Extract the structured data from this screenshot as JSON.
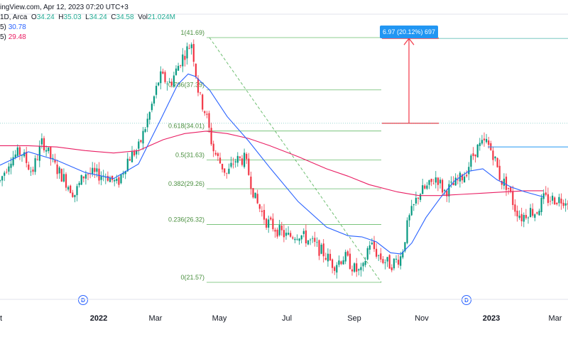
{
  "header": {
    "source_fragment": "ingView.com, Apr 12, 2023 07:20 UTC+3",
    "symbol_fragment": "1D, Arca",
    "ohlc": [
      {
        "key": "O",
        "value": "34.24"
      },
      {
        "key": "H",
        "value": "35.03"
      },
      {
        "key": "L",
        "value": "34.24"
      },
      {
        "key": "C",
        "value": "34.58"
      },
      {
        "key": "Vol",
        "value": "21.024M"
      }
    ],
    "ma_rows": [
      {
        "suffix": "5)",
        "value": "30.78",
        "color": "#2962ff"
      },
      {
        "suffix": "5)",
        "value": "29.48",
        "color": "#e91e63"
      }
    ]
  },
  "measure_badge": "6.97 (20.12%) 697",
  "dividend_marker": "D",
  "chart_data": {
    "type": "candlestick",
    "x_axis_labels": [
      {
        "label": "t",
        "t": 0
      },
      {
        "label": "2022",
        "t": 117,
        "bold": true
      },
      {
        "label": "Mar",
        "t": 197
      },
      {
        "label": "May",
        "t": 287
      },
      {
        "label": "Jul",
        "t": 382
      },
      {
        "label": "Sep",
        "t": 477
      },
      {
        "label": "Nov",
        "t": 572
      },
      {
        "label": "2023",
        "t": 670,
        "bold": true
      },
      {
        "label": "Mar",
        "t": 760
      }
    ],
    "fib_levels": [
      {
        "ratio_label": "1(41.69)",
        "price": 41.69
      },
      {
        "ratio_label": "0.786(37.39)",
        "price": 37.39
      },
      {
        "ratio_label": "0.618(34.01)",
        "price": 34.01
      },
      {
        "ratio_label": "0.5(31.63)",
        "price": 31.63
      },
      {
        "ratio_label": "0.382(29.26)",
        "price": 29.26
      },
      {
        "ratio_label": "0.236(26.32)",
        "price": 26.32
      },
      {
        "ratio_label": "0(21.57)",
        "price": 21.57
      }
    ],
    "fib_range_t": [
      265,
      505
    ],
    "fib_trend": {
      "from": {
        "t": 265,
        "price": 41.69
      },
      "to": {
        "t": 505,
        "price": 21.57
      }
    },
    "measure": {
      "t": 540,
      "from_price": 34.65,
      "to_price": 41.62,
      "change": 6.97,
      "percent": 20.12
    },
    "resistance_line": {
      "t_start": 655,
      "price": 32.7
    },
    "dividend_marker_t": [
      105,
      645
    ],
    "price_anchor_points": [
      [
        0,
        29.9
      ],
      [
        15,
        31.8
      ],
      [
        30,
        32.3
      ],
      [
        45,
        30.6
      ],
      [
        60,
        33.2
      ],
      [
        75,
        31.3
      ],
      [
        90,
        30.1
      ],
      [
        105,
        28.8
      ],
      [
        120,
        30.6
      ],
      [
        135,
        30.4
      ],
      [
        150,
        30.4
      ],
      [
        165,
        29.6
      ],
      [
        180,
        31.7
      ],
      [
        195,
        32.6
      ],
      [
        210,
        35.3
      ],
      [
        225,
        38.5
      ],
      [
        240,
        37.9
      ],
      [
        255,
        39.9
      ],
      [
        270,
        41.3
      ],
      [
        280,
        37.0
      ],
      [
        290,
        35.4
      ],
      [
        300,
        32.5
      ],
      [
        310,
        31.4
      ],
      [
        320,
        30.4
      ],
      [
        330,
        31.6
      ],
      [
        345,
        31.7
      ],
      [
        360,
        28.3
      ],
      [
        375,
        26.6
      ],
      [
        390,
        25.9
      ],
      [
        405,
        25.3
      ],
      [
        420,
        25.6
      ],
      [
        440,
        24.8
      ],
      [
        455,
        24.0
      ],
      [
        470,
        23.0
      ],
      [
        485,
        23.7
      ],
      [
        500,
        22.6
      ],
      [
        510,
        22.3
      ],
      [
        520,
        24.9
      ],
      [
        535,
        23.6
      ],
      [
        550,
        23.0
      ],
      [
        565,
        23.7
      ],
      [
        575,
        26.6
      ],
      [
        590,
        28.9
      ],
      [
        605,
        29.5
      ],
      [
        615,
        30.3
      ],
      [
        625,
        29.0
      ],
      [
        640,
        29.6
      ],
      [
        655,
        30.5
      ],
      [
        670,
        32.5
      ],
      [
        685,
        33.1
      ],
      [
        695,
        32.1
      ],
      [
        705,
        30.0
      ],
      [
        715,
        29.5
      ],
      [
        725,
        27.7
      ],
      [
        735,
        26.9
      ],
      [
        745,
        27.5
      ],
      [
        755,
        27.3
      ],
      [
        765,
        28.4
      ]
    ],
    "sma_blue": [
      [
        0,
        31.2
      ],
      [
        40,
        32.3
      ],
      [
        80,
        31.6
      ],
      [
        120,
        30.6
      ],
      [
        160,
        30.1
      ],
      [
        195,
        31.3
      ],
      [
        225,
        34.8
      ],
      [
        250,
        37.8
      ],
      [
        265,
        38.7
      ],
      [
        275,
        38.5
      ],
      [
        295,
        37.4
      ],
      [
        320,
        35.2
      ],
      [
        350,
        33.2
      ],
      [
        380,
        31.0
      ],
      [
        420,
        28.2
      ],
      [
        460,
        26.1
      ],
      [
        490,
        25.4
      ],
      [
        510,
        25.3
      ],
      [
        530,
        24.9
      ],
      [
        550,
        24.0
      ],
      [
        565,
        23.9
      ],
      [
        580,
        24.8
      ],
      [
        600,
        26.9
      ],
      [
        620,
        28.5
      ],
      [
        640,
        29.9
      ],
      [
        660,
        30.7
      ],
      [
        680,
        30.9
      ],
      [
        700,
        30.0
      ],
      [
        720,
        29.4
      ],
      [
        740,
        29.0
      ],
      [
        765,
        28.6
      ]
    ],
    "sma_pink": [
      [
        0,
        32.8
      ],
      [
        40,
        32.8
      ],
      [
        80,
        32.7
      ],
      [
        120,
        32.4
      ],
      [
        160,
        32.2
      ],
      [
        195,
        32.4
      ],
      [
        230,
        33.3
      ],
      [
        260,
        33.8
      ],
      [
        290,
        34.0
      ],
      [
        320,
        33.8
      ],
      [
        350,
        33.4
      ],
      [
        380,
        32.8
      ],
      [
        420,
        31.9
      ],
      [
        460,
        30.9
      ],
      [
        490,
        30.3
      ],
      [
        520,
        29.6
      ],
      [
        560,
        29.0
      ],
      [
        590,
        28.7
      ],
      [
        620,
        28.7
      ],
      [
        650,
        28.8
      ],
      [
        680,
        28.9
      ],
      [
        710,
        29.0
      ],
      [
        740,
        29.1
      ],
      [
        765,
        29.1
      ]
    ]
  }
}
